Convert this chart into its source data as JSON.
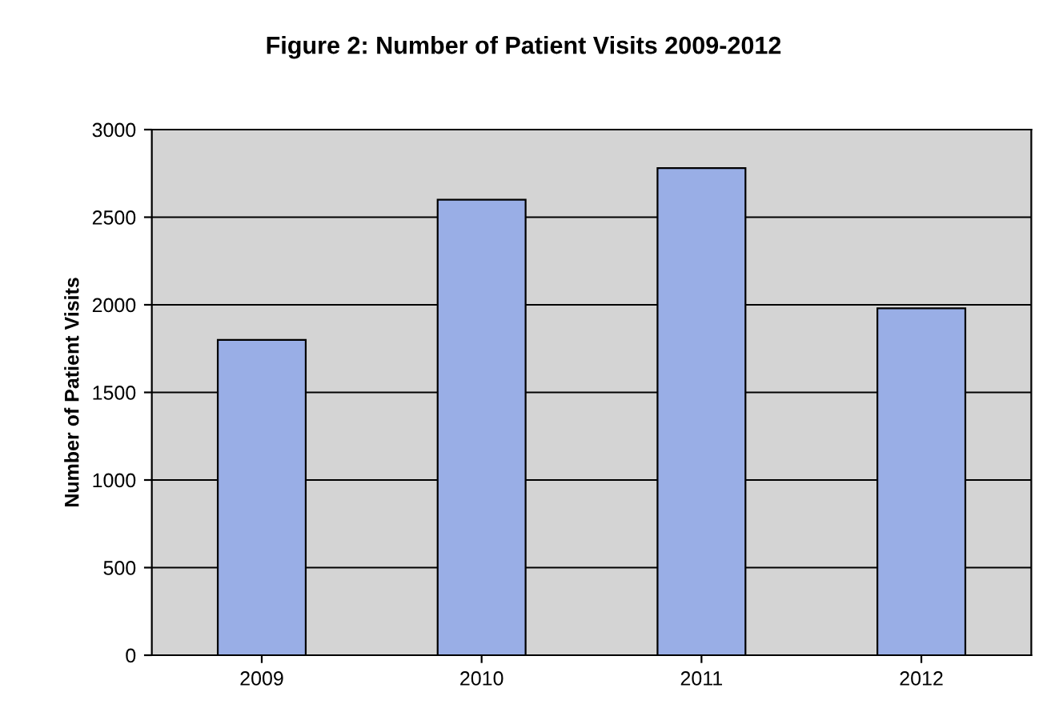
{
  "chart_data": {
    "type": "bar",
    "title": "Figure 2: Number of Patient Visits 2009-2012",
    "ylabel": "Number of Patient Visits",
    "categories": [
      "2009",
      "2010",
      "2011",
      "2012"
    ],
    "values": [
      1800,
      2600,
      2780,
      1980
    ],
    "color": "#99aee6",
    "ylim": [
      0,
      3000
    ],
    "yticks": [
      0,
      500,
      1000,
      1500,
      2000,
      2500,
      3000
    ],
    "grid": "y",
    "legend": false
  }
}
